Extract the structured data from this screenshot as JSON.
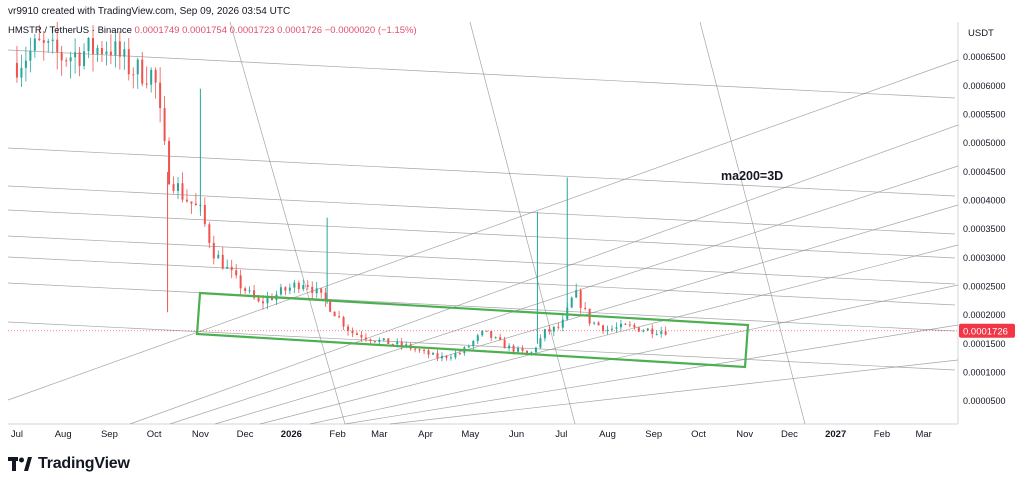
{
  "header": {
    "created_by": "vr9910 created with TradingView.com, Sep 09, 2026 03:54 UTC"
  },
  "symbol": {
    "name": "HMSTR / TetherUS · Binance",
    "ohlc": "0.0001749  0.0001754  0.0001723  0.0001726  −0.0000020 (−1.15%)"
  },
  "currency_label": "USDT",
  "annotation": "ma200=3D",
  "last_price_label": "0.0001726",
  "footer": {
    "brand": "TradingView"
  },
  "colors": {
    "up": "#26a69a",
    "down": "#ef5350",
    "channel": "#4caf50",
    "price_tag": "#f23645",
    "fib_lines": "#888888"
  },
  "chart_data": {
    "type": "candlestick",
    "x_tick_labels": [
      "Jul",
      "Aug",
      "Sep",
      "Oct",
      "Nov",
      "Dec",
      "2026",
      "Feb",
      "Mar",
      "Apr",
      "May",
      "Jun",
      "Jul",
      "Aug",
      "Sep",
      "Oct",
      "Nov",
      "Dec",
      "2027",
      "Feb",
      "Mar"
    ],
    "y_tick_labels": [
      "0.0000500",
      "0.0001000",
      "0.0001500",
      "0.0002000",
      "0.0002500",
      "0.0003000",
      "0.0003500",
      "0.0004000",
      "0.0004500",
      "0.0005000",
      "0.0005500",
      "0.0006000",
      "0.0006500"
    ],
    "ylim": [
      1e-05,
      0.00068
    ],
    "last_price": 0.0001726,
    "price_path": [
      [
        "2025-07-01",
        0.00064
      ],
      [
        "2025-07-15",
        0.00067
      ],
      [
        "2025-08-01",
        0.00065
      ],
      [
        "2025-08-15",
        0.00066
      ],
      [
        "2025-09-01",
        0.00067
      ],
      [
        "2025-09-15",
        0.00063
      ],
      [
        "2025-10-01",
        0.00062
      ],
      [
        "2025-10-10",
        0.00045
      ],
      [
        "2025-10-20",
        0.00041
      ],
      [
        "2025-11-01",
        0.00038
      ],
      [
        "2025-11-10",
        0.00031
      ],
      [
        "2025-11-25",
        0.00026
      ],
      [
        "2025-12-10",
        0.00022
      ],
      [
        "2025-12-25",
        0.00024
      ],
      [
        "2026-01-10",
        0.00026
      ],
      [
        "2026-01-25",
        0.00022
      ],
      [
        "2026-02-10",
        0.00017
      ],
      [
        "2026-03-01",
        0.000155
      ],
      [
        "2026-03-20",
        0.000145
      ],
      [
        "2026-04-10",
        0.000125
      ],
      [
        "2026-04-25",
        0.000135
      ],
      [
        "2026-05-10",
        0.00017
      ],
      [
        "2026-05-25",
        0.000145
      ],
      [
        "2026-06-10",
        0.00013
      ],
      [
        "2026-06-20",
        0.00017
      ],
      [
        "2026-07-01",
        0.00018
      ],
      [
        "2026-07-10",
        0.00024
      ],
      [
        "2026-07-20",
        0.00019
      ],
      [
        "2026-08-01",
        0.000175
      ],
      [
        "2026-08-15",
        0.00018
      ],
      [
        "2026-08-25",
        0.000175
      ],
      [
        "2026-09-09",
        0.0001726
      ]
    ],
    "spikes": [
      [
        "2025-11-01",
        0.000595
      ],
      [
        "2026-01-25",
        0.00037
      ],
      [
        "2026-06-15",
        0.00038
      ],
      [
        "2026-07-05",
        0.00044
      ],
      [
        "2025-10-10",
        0.000205
      ]
    ]
  }
}
